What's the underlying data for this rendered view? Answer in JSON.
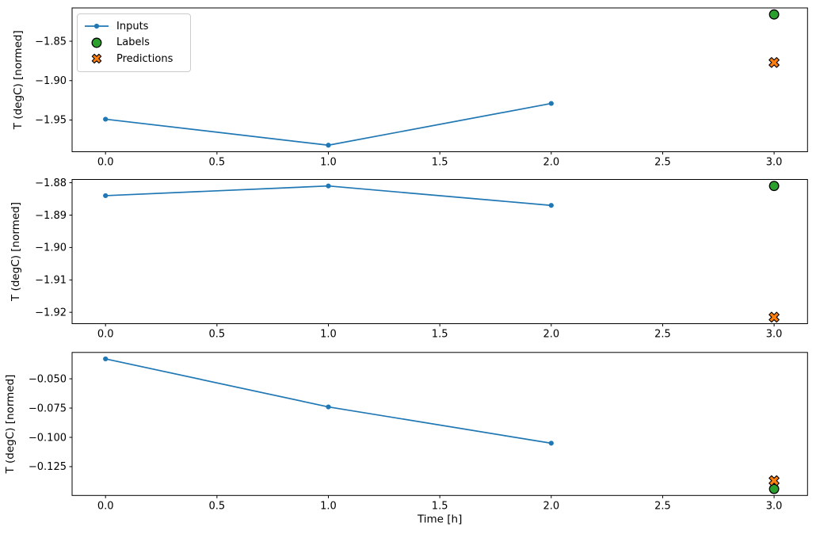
{
  "figure": {
    "background": "#ffffff",
    "xlabel": "Time [h]",
    "ylabel": "T (degC) [normed]"
  },
  "colors": {
    "inputs": "#1f77b4",
    "labels": "#2ca02c",
    "predictions": "#ff7f0e",
    "marker_edge": "#000000",
    "axis": "#000000",
    "legend_border": "#cccccc"
  },
  "legend": {
    "position": "upper-left-of-first-subplot",
    "entries": [
      {
        "label": "Inputs",
        "marker": "line-dot",
        "color": "#1f77b4"
      },
      {
        "label": "Labels",
        "marker": "circle",
        "color": "#2ca02c"
      },
      {
        "label": "Predictions",
        "marker": "x",
        "color": "#ff7f0e"
      }
    ]
  },
  "chart_data": [
    {
      "type": "line",
      "title": "",
      "xlabel": "",
      "ylabel": "T (degC) [normed]",
      "xlim": [
        -0.15,
        3.15
      ],
      "ylim": [
        -1.9903,
        -1.8077
      ],
      "grid": false,
      "x_ticks": [
        0.0,
        0.5,
        1.0,
        1.5,
        2.0,
        2.5,
        3.0
      ],
      "x_tick_labels": [
        "0.0",
        "0.5",
        "1.0",
        "1.5",
        "2.0",
        "2.5",
        "3.0"
      ],
      "y_ticks": [
        -1.85,
        -1.9,
        -1.95
      ],
      "y_tick_labels": [
        "−1.85",
        "−1.90",
        "−1.95"
      ],
      "series": [
        {
          "name": "Inputs",
          "kind": "line",
          "x": [
            0,
            1,
            2
          ],
          "y": [
            -1.949,
            -1.982,
            -1.929
          ]
        },
        {
          "name": "Labels",
          "kind": "scatter-circle",
          "x": [
            3
          ],
          "y": [
            -1.816
          ]
        },
        {
          "name": "Predictions",
          "kind": "scatter-x",
          "x": [
            3
          ],
          "y": [
            -1.877
          ]
        }
      ]
    },
    {
      "type": "line",
      "title": "",
      "xlabel": "",
      "ylabel": "T (degC) [normed]",
      "xlim": [
        -0.15,
        3.15
      ],
      "ylim": [
        -1.9235,
        -1.879
      ],
      "grid": false,
      "x_ticks": [
        0.0,
        0.5,
        1.0,
        1.5,
        2.0,
        2.5,
        3.0
      ],
      "x_tick_labels": [
        "0.0",
        "0.5",
        "1.0",
        "1.5",
        "2.0",
        "2.5",
        "3.0"
      ],
      "y_ticks": [
        -1.88,
        -1.89,
        -1.9,
        -1.91,
        -1.92
      ],
      "y_tick_labels": [
        "−1.88",
        "−1.89",
        "−1.90",
        "−1.91",
        "−1.92"
      ],
      "series": [
        {
          "name": "Inputs",
          "kind": "line",
          "x": [
            0,
            1,
            2
          ],
          "y": [
            -1.884,
            -1.881,
            -1.887
          ]
        },
        {
          "name": "Labels",
          "kind": "scatter-circle",
          "x": [
            3
          ],
          "y": [
            -1.881
          ]
        },
        {
          "name": "Predictions",
          "kind": "scatter-x",
          "x": [
            3
          ],
          "y": [
            -1.9215
          ]
        }
      ]
    },
    {
      "type": "line",
      "title": "",
      "xlabel": "Time [h]",
      "ylabel": "T (degC) [normed]",
      "xlim": [
        -0.15,
        3.15
      ],
      "ylim": [
        -0.1496,
        -0.0275
      ],
      "grid": false,
      "x_ticks": [
        0.0,
        0.5,
        1.0,
        1.5,
        2.0,
        2.5,
        3.0
      ],
      "x_tick_labels": [
        "0.0",
        "0.5",
        "1.0",
        "1.5",
        "2.0",
        "2.5",
        "3.0"
      ],
      "y_ticks": [
        -0.05,
        -0.075,
        -0.1,
        -0.125
      ],
      "y_tick_labels": [
        "−0.050",
        "−0.075",
        "−0.100",
        "−0.125"
      ],
      "series": [
        {
          "name": "Inputs",
          "kind": "line",
          "x": [
            0,
            1,
            2
          ],
          "y": [
            -0.033,
            -0.074,
            -0.105
          ]
        },
        {
          "name": "Labels",
          "kind": "scatter-circle",
          "x": [
            3
          ],
          "y": [
            -0.144
          ]
        },
        {
          "name": "Predictions",
          "kind": "scatter-x",
          "x": [
            3
          ],
          "y": [
            -0.137
          ]
        }
      ]
    }
  ]
}
